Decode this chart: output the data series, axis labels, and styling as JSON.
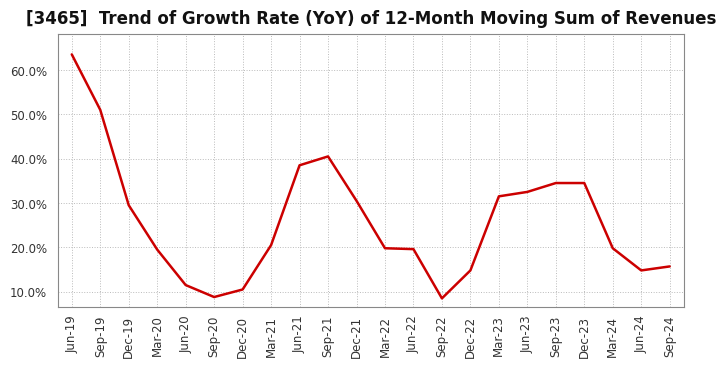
{
  "title": "[3465]  Trend of Growth Rate (YoY) of 12-Month Moving Sum of Revenues",
  "line_color": "#cc0000",
  "background_color": "#ffffff",
  "plot_bg_color": "#ffffff",
  "grid_color": "#bbbbbb",
  "x_labels": [
    "Jun-19",
    "Sep-19",
    "Dec-19",
    "Mar-20",
    "Jun-20",
    "Sep-20",
    "Dec-20",
    "Mar-21",
    "Jun-21",
    "Sep-21",
    "Dec-21",
    "Mar-22",
    "Jun-22",
    "Sep-22",
    "Dec-22",
    "Mar-23",
    "Jun-23",
    "Sep-23",
    "Dec-23",
    "Mar-24",
    "Jun-24",
    "Sep-24"
  ],
  "y_values": [
    0.635,
    0.51,
    0.295,
    0.195,
    0.115,
    0.088,
    0.105,
    0.205,
    0.385,
    0.405,
    0.305,
    0.198,
    0.196,
    0.085,
    0.148,
    0.315,
    0.325,
    0.345,
    0.345,
    0.198,
    0.148,
    0.157
  ],
  "ylim_low": 0.065,
  "ylim_high": 0.68,
  "yticks": [
    0.1,
    0.2,
    0.3,
    0.4,
    0.5,
    0.6
  ],
  "ytick_labels": [
    "10.0%",
    "20.0%",
    "30.0%",
    "40.0%",
    "50.0%",
    "60.0%"
  ],
  "title_fontsize": 12,
  "tick_fontsize": 8.5
}
